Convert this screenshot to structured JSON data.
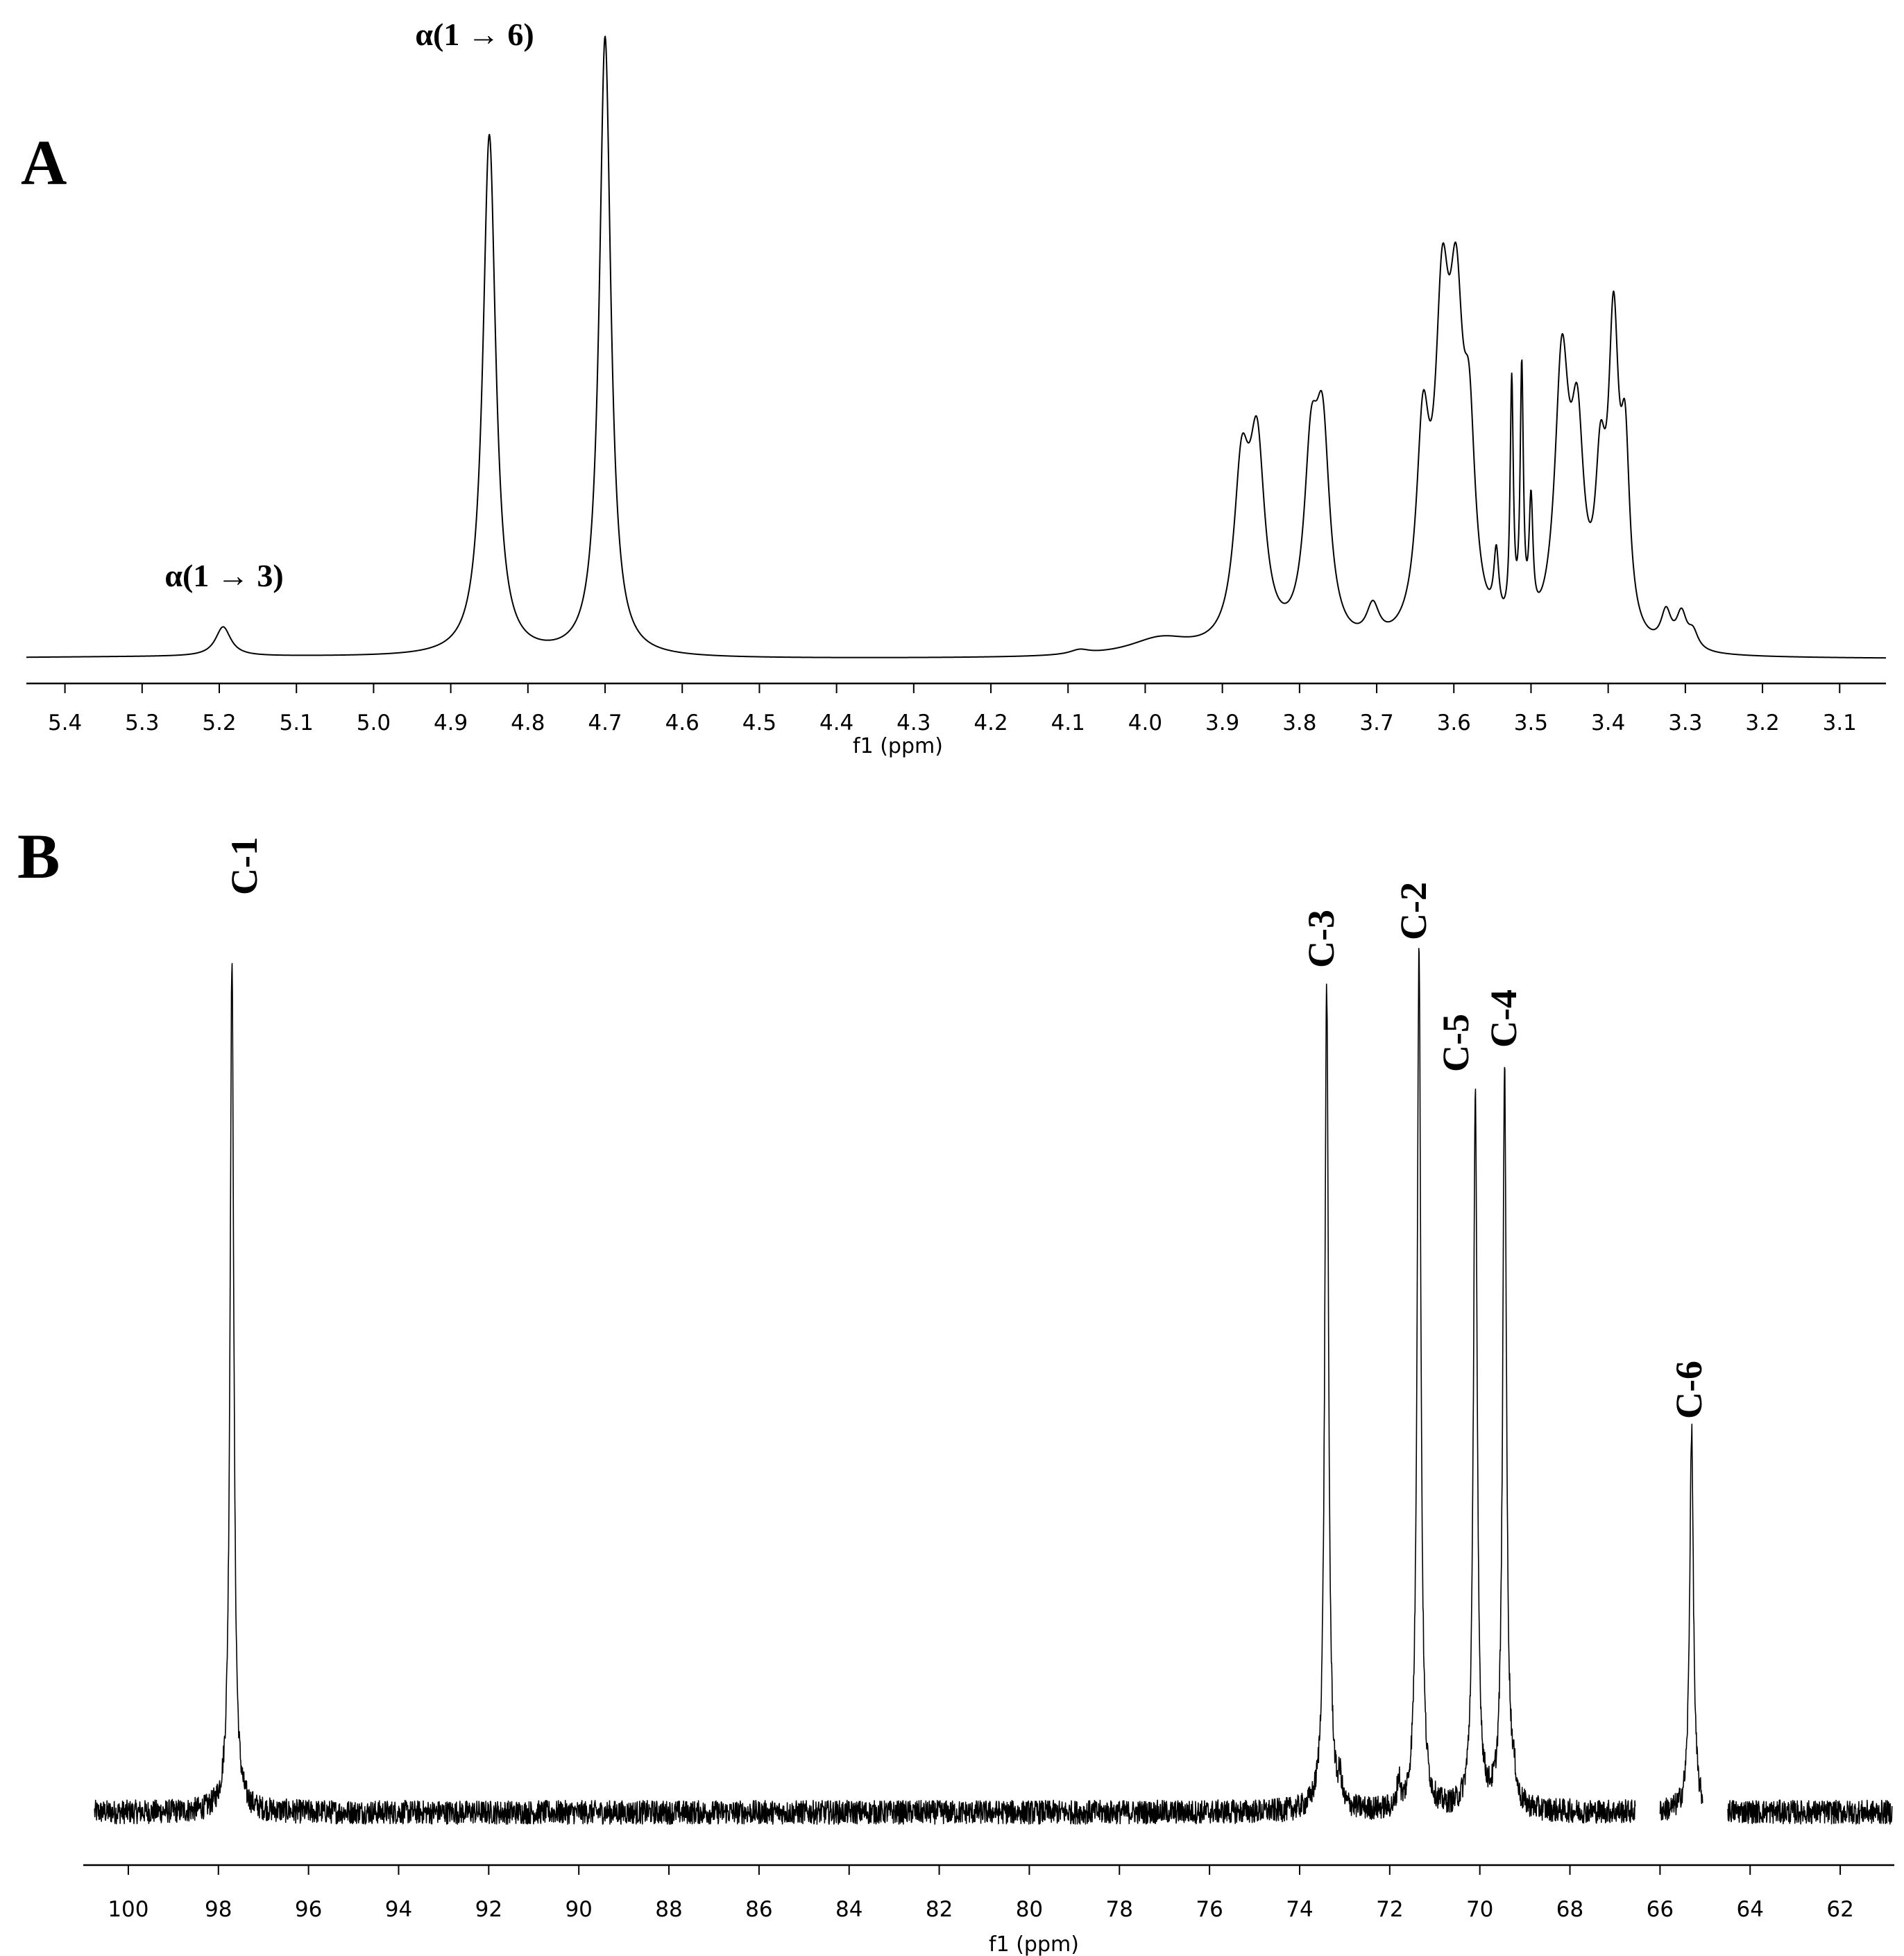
{
  "chart_data": [
    {
      "type": "line",
      "panel_label": "A",
      "xlabel": "f1 (ppm)",
      "xlim": [
        5.45,
        3.04
      ],
      "reversed_x": true,
      "x_ticks": [
        "5.4",
        "5.3",
        "5.2",
        "5.1",
        "5.0",
        "4.9",
        "4.8",
        "4.7",
        "4.6",
        "4.5",
        "4.4",
        "4.3",
        "4.2",
        "4.1",
        "4.0",
        "3.9",
        "3.8",
        "3.7",
        "3.6",
        "3.5",
        "3.4",
        "3.3",
        "3.2",
        "3.1"
      ],
      "annotations": [
        {
          "text": "α(1 → 3)",
          "x": 5.19
        },
        {
          "text": "α(1 → 6)",
          "x": 4.85
        }
      ],
      "peaks": [
        {
          "x": 5.195,
          "height": 0.052,
          "width": 0.012
        },
        {
          "x": 4.85,
          "height": 0.925,
          "width": 0.01
        },
        {
          "x": 4.7,
          "height": 1.1,
          "width": 0.009
        },
        {
          "x": 4.085,
          "height": 0.008,
          "width": 0.015
        },
        {
          "x": 3.98,
          "height": 0.03,
          "width": 0.05
        },
        {
          "x": 3.875,
          "height": 0.29,
          "width": 0.012
        },
        {
          "x": 3.855,
          "height": 0.33,
          "width": 0.012
        },
        {
          "x": 3.785,
          "height": 0.3,
          "width": 0.011
        },
        {
          "x": 3.77,
          "height": 0.34,
          "width": 0.011
        },
        {
          "x": 3.705,
          "height": 0.06,
          "width": 0.01
        },
        {
          "x": 3.64,
          "height": 0.34,
          "width": 0.01
        },
        {
          "x": 3.615,
          "height": 0.52,
          "width": 0.011
        },
        {
          "x": 3.597,
          "height": 0.5,
          "width": 0.011
        },
        {
          "x": 3.58,
          "height": 0.3,
          "width": 0.009
        },
        {
          "x": 3.545,
          "height": 0.12,
          "width": 0.004
        },
        {
          "x": 3.525,
          "height": 0.43,
          "width": 0.0025
        },
        {
          "x": 3.512,
          "height": 0.45,
          "width": 0.0025
        },
        {
          "x": 3.5,
          "height": 0.21,
          "width": 0.003
        },
        {
          "x": 3.46,
          "height": 0.48,
          "width": 0.011
        },
        {
          "x": 3.44,
          "height": 0.33,
          "width": 0.01
        },
        {
          "x": 3.41,
          "height": 0.25,
          "width": 0.008
        },
        {
          "x": 3.393,
          "height": 0.52,
          "width": 0.008
        },
        {
          "x": 3.378,
          "height": 0.3,
          "width": 0.007
        },
        {
          "x": 3.325,
          "height": 0.06,
          "width": 0.008
        },
        {
          "x": 3.305,
          "height": 0.06,
          "width": 0.008
        },
        {
          "x": 3.29,
          "height": 0.03,
          "width": 0.008
        }
      ]
    },
    {
      "type": "line",
      "panel_label": "B",
      "xlabel": "f1 (ppm)",
      "xlim": [
        101,
        60.8
      ],
      "reversed_x": true,
      "x_ticks": [
        "100",
        "98",
        "96",
        "94",
        "92",
        "90",
        "88",
        "86",
        "84",
        "82",
        "80",
        "78",
        "76",
        "74",
        "72",
        "70",
        "68",
        "66",
        "64",
        "62"
      ],
      "annotations": [
        {
          "text": "C-1",
          "x": 97.7
        },
        {
          "text": "C-3",
          "x": 73.4
        },
        {
          "text": "C-2",
          "x": 71.35
        },
        {
          "text": "C-5",
          "x": 70.1
        },
        {
          "text": "C-4",
          "x": 69.45
        },
        {
          "text": "C-6",
          "x": 65.3
        }
      ],
      "peaks": [
        {
          "x": 97.7,
          "height": 1.0,
          "width": 0.05
        },
        {
          "x": 73.4,
          "height": 0.97,
          "width": 0.05
        },
        {
          "x": 71.35,
          "height": 1.01,
          "width": 0.05
        },
        {
          "x": 70.1,
          "height": 0.84,
          "width": 0.05
        },
        {
          "x": 69.45,
          "height": 0.87,
          "width": 0.05
        },
        {
          "x": 65.3,
          "height": 0.45,
          "width": 0.05
        }
      ],
      "gaps": [
        [
          66.55,
          66.0
        ],
        [
          65.05,
          64.5
        ]
      ]
    }
  ]
}
